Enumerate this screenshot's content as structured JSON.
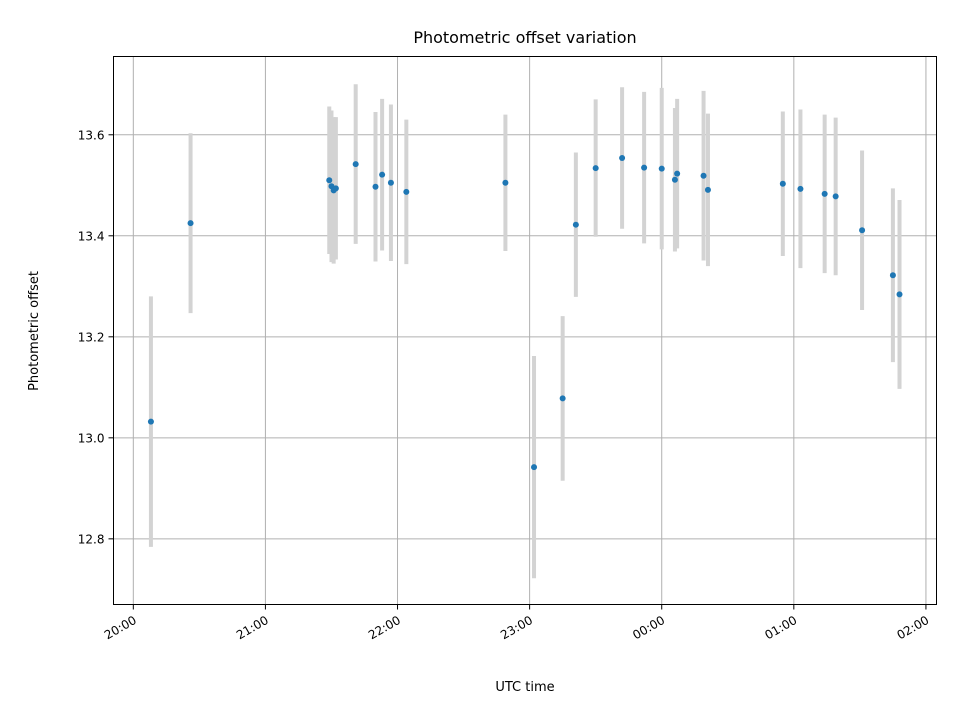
{
  "chart_data": {
    "type": "scatter",
    "title": "Photometric offset variation",
    "xlabel": "UTC time",
    "ylabel": "Photometric offset",
    "x_ticks": [
      "20:00",
      "21:00",
      "22:00",
      "23:00",
      "00:00",
      "01:00",
      "02:00"
    ],
    "y_ticks": [
      "12.8",
      "13.0",
      "13.2",
      "13.4",
      "13.6"
    ],
    "ylim": [
      12.67,
      13.755
    ],
    "xlim_hours": [
      19.85,
      26.08
    ],
    "grid": true,
    "colors": {
      "point": "#1f77b4",
      "errorbar": "#d3d3d3",
      "grid": "#b0b0b0"
    },
    "points": [
      {
        "t": "20:08",
        "y": 13.032,
        "err": 0.248
      },
      {
        "t": "20:26",
        "y": 13.425,
        "err": 0.178
      },
      {
        "t": "21:29",
        "y": 13.51,
        "err": 0.146
      },
      {
        "t": "21:30",
        "y": 13.498,
        "err": 0.15
      },
      {
        "t": "21:31",
        "y": 13.49,
        "err": 0.145
      },
      {
        "t": "21:32",
        "y": 13.494,
        "err": 0.141
      },
      {
        "t": "21:41",
        "y": 13.542,
        "err": 0.158
      },
      {
        "t": "21:50",
        "y": 13.497,
        "err": 0.148
      },
      {
        "t": "21:53",
        "y": 13.521,
        "err": 0.15
      },
      {
        "t": "21:57",
        "y": 13.505,
        "err": 0.155
      },
      {
        "t": "22:04",
        "y": 13.487,
        "err": 0.143
      },
      {
        "t": "22:49",
        "y": 13.505,
        "err": 0.135
      },
      {
        "t": "23:02",
        "y": 12.942,
        "err": 0.22
      },
      {
        "t": "23:15",
        "y": 13.078,
        "err": 0.163
      },
      {
        "t": "23:21",
        "y": 13.422,
        "err": 0.143
      },
      {
        "t": "23:30",
        "y": 13.534,
        "err": 0.136
      },
      {
        "t": "23:42",
        "y": 13.554,
        "err": 0.14
      },
      {
        "t": "23:52",
        "y": 13.535,
        "err": 0.15
      },
      {
        "t": "00:00",
        "y": 13.533,
        "err": 0.16
      },
      {
        "t": "00:06",
        "y": 13.511,
        "err": 0.142
      },
      {
        "t": "00:07",
        "y": 13.523,
        "err": 0.148
      },
      {
        "t": "00:19",
        "y": 13.519,
        "err": 0.168
      },
      {
        "t": "00:21",
        "y": 13.491,
        "err": 0.151
      },
      {
        "t": "00:55",
        "y": 13.503,
        "err": 0.143
      },
      {
        "t": "01:03",
        "y": 13.493,
        "err": 0.157
      },
      {
        "t": "01:14",
        "y": 13.483,
        "err": 0.157
      },
      {
        "t": "01:19",
        "y": 13.478,
        "err": 0.156
      },
      {
        "t": "01:31",
        "y": 13.411,
        "err": 0.158
      },
      {
        "t": "01:45",
        "y": 13.322,
        "err": 0.172
      },
      {
        "t": "01:48",
        "y": 13.284,
        "err": 0.187
      }
    ]
  }
}
